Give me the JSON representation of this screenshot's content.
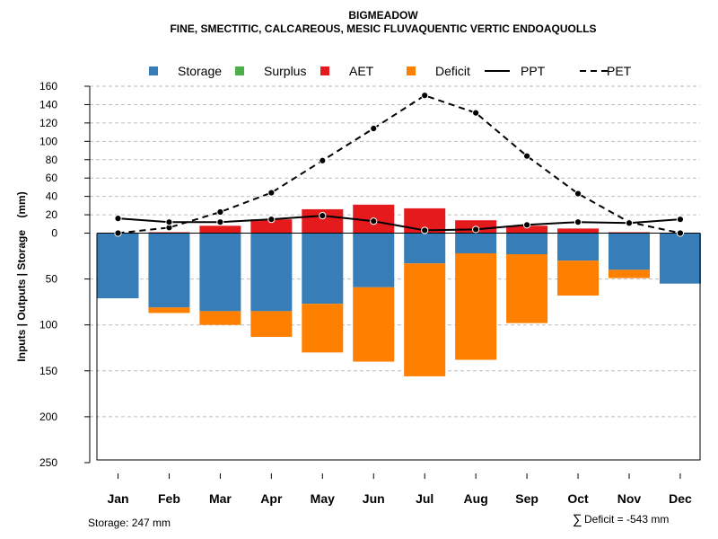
{
  "chart_data": {
    "type": "bar",
    "title": "BIGMEADOW",
    "subtitle": "FINE, SMECTITIC, CALCAREOUS, MESIC FLUVAQUENTIC VERTIC ENDOAQUOLLS",
    "ylabel": "Inputs | Outputs | Storage    (mm)",
    "categories": [
      "Jan",
      "Feb",
      "Mar",
      "Apr",
      "May",
      "Jun",
      "Jul",
      "Aug",
      "Sep",
      "Oct",
      "Nov",
      "Dec"
    ],
    "y_ticks_above": [
      "160",
      "140",
      "120",
      "100",
      "80",
      "60",
      "40",
      "20",
      "0"
    ],
    "y_ticks_below": [
      "50",
      "100",
      "150",
      "200",
      "250"
    ],
    "ylim_above": [
      0,
      160
    ],
    "ylim_below": [
      0,
      250
    ],
    "legend": [
      {
        "name": "Storage",
        "kind": "box",
        "color": "#377eb8"
      },
      {
        "name": "Surplus",
        "kind": "box",
        "color": "#4daf4a"
      },
      {
        "name": "AET",
        "kind": "box",
        "color": "#e41a1c"
      },
      {
        "name": "Deficit",
        "kind": "box",
        "color": "#ff7f00"
      },
      {
        "name": "PPT",
        "kind": "solid-line",
        "color": "#000000"
      },
      {
        "name": "PET",
        "kind": "dashed-line",
        "color": "#000000"
      }
    ],
    "series": [
      {
        "name": "AET",
        "values": [
          0,
          1,
          8,
          15,
          26,
          31,
          27,
          14,
          8,
          5,
          1,
          0
        ]
      },
      {
        "name": "Storage",
        "values": [
          71,
          81,
          85,
          85,
          77,
          59,
          33,
          22,
          23,
          30,
          40,
          55
        ]
      },
      {
        "name": "Deficit",
        "values": [
          0,
          6,
          15,
          28,
          53,
          81,
          123,
          116,
          75,
          38,
          9,
          0
        ]
      },
      {
        "name": "PPT",
        "values": [
          16,
          12,
          12,
          15,
          19,
          13,
          3,
          4,
          9,
          12,
          11,
          15
        ]
      },
      {
        "name": "PET",
        "values": [
          0,
          6,
          23,
          44,
          79,
          114,
          150,
          131,
          84,
          43,
          12,
          0
        ]
      }
    ],
    "colors": {
      "storage": "#377eb8",
      "surplus": "#4daf4a",
      "aet": "#e41a1c",
      "deficit": "#ff7f00",
      "grid": "#bebebe",
      "line": "#000000"
    }
  },
  "footer": {
    "storage_label": "Storage: 247 mm",
    "deficit_symbol": "∑",
    "deficit_label": "Deficit = -543 mm"
  }
}
